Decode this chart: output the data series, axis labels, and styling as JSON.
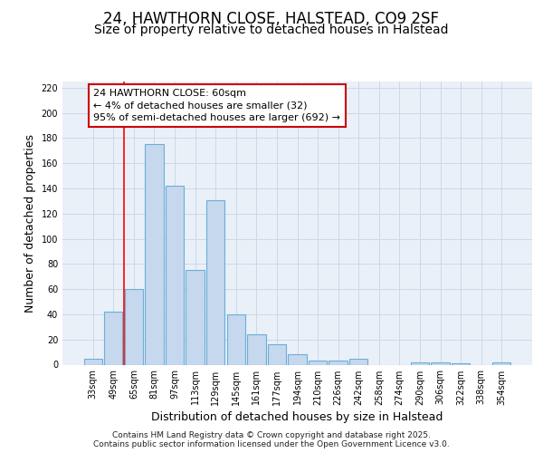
{
  "title_line1": "24, HAWTHORN CLOSE, HALSTEAD, CO9 2SF",
  "title_line2": "Size of property relative to detached houses in Halstead",
  "xlabel": "Distribution of detached houses by size in Halstead",
  "ylabel": "Number of detached properties",
  "categories": [
    "33sqm",
    "49sqm",
    "65sqm",
    "81sqm",
    "97sqm",
    "113sqm",
    "129sqm",
    "145sqm",
    "161sqm",
    "177sqm",
    "194sqm",
    "210sqm",
    "226sqm",
    "242sqm",
    "258sqm",
    "274sqm",
    "290sqm",
    "306sqm",
    "322sqm",
    "338sqm",
    "354sqm"
  ],
  "values": [
    5,
    42,
    60,
    175,
    142,
    75,
    131,
    40,
    24,
    16,
    8,
    3,
    3,
    5,
    0,
    0,
    2,
    2,
    1,
    0,
    2
  ],
  "bar_color": "#c5d8ee",
  "bar_edge_color": "#6baed6",
  "annotation_text": "24 HAWTHORN CLOSE: 60sqm\n← 4% of detached houses are smaller (32)\n95% of semi-detached houses are larger (692) →",
  "annotation_box_facecolor": "#ffffff",
  "annotation_box_edgecolor": "#cc0000",
  "red_line_x": 1.5,
  "ylim": [
    0,
    225
  ],
  "yticks": [
    0,
    20,
    40,
    60,
    80,
    100,
    120,
    140,
    160,
    180,
    200,
    220
  ],
  "grid_color": "#ccd8e8",
  "bg_color": "#eaf0f8",
  "footer_text": "Contains HM Land Registry data © Crown copyright and database right 2025.\nContains public sector information licensed under the Open Government Licence v3.0.",
  "title_fontsize": 12,
  "subtitle_fontsize": 10,
  "axis_label_fontsize": 9,
  "tick_fontsize": 7,
  "annotation_fontsize": 8,
  "footer_fontsize": 6.5
}
